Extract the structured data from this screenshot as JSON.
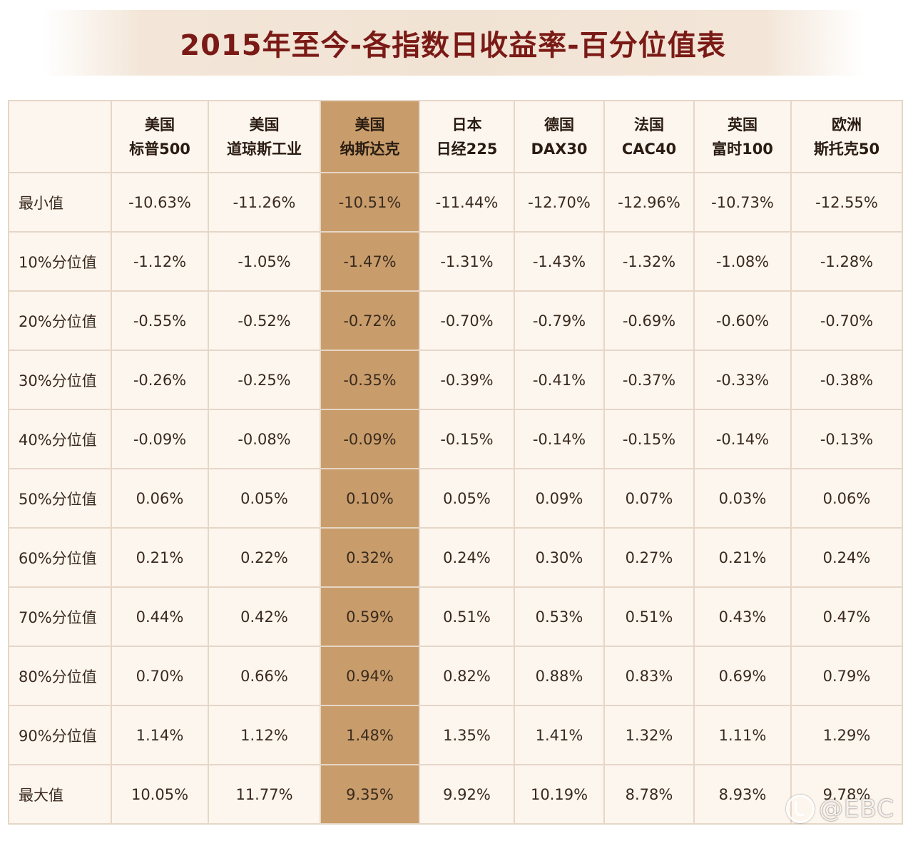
{
  "title": "2015年至今-各指数日收益率-百分位值表",
  "columns": [
    {
      "line1": "美国",
      "line2": "标普500"
    },
    {
      "line1": "美国",
      "line2": "道琼斯工业"
    },
    {
      "line1": "美国",
      "line2": "纳斯达克"
    },
    {
      "line1": "日本",
      "line2": "日经225"
    },
    {
      "line1": "德国",
      "line2": "DAX30"
    },
    {
      "line1": "法国",
      "line2": "CAC40"
    },
    {
      "line1": "英国",
      "line2": "富时100"
    },
    {
      "line1": "欧洲",
      "line2": "斯托克50"
    }
  ],
  "highlight_color": "#c89d6b",
  "rows": [
    {
      "label": "最小值",
      "values": [
        "-10.63%",
        "-11.26%",
        "-10.51%",
        "-11.44%",
        "-12.70%",
        "-12.96%",
        "-10.73%",
        "-12.55%"
      ]
    },
    {
      "label": "10%分位值",
      "values": [
        "-1.12%",
        "-1.05%",
        "-1.47%",
        "-1.31%",
        "-1.43%",
        "-1.32%",
        "-1.08%",
        "-1.28%"
      ]
    },
    {
      "label": "20%分位值",
      "values": [
        "-0.55%",
        "-0.52%",
        "-0.72%",
        "-0.70%",
        "-0.79%",
        "-0.69%",
        "-0.60%",
        "-0.70%"
      ]
    },
    {
      "label": "30%分位值",
      "values": [
        "-0.26%",
        "-0.25%",
        "-0.35%",
        "-0.39%",
        "-0.41%",
        "-0.37%",
        "-0.33%",
        "-0.38%"
      ]
    },
    {
      "label": "40%分位值",
      "values": [
        "-0.09%",
        "-0.08%",
        "-0.09%",
        "-0.15%",
        "-0.14%",
        "-0.15%",
        "-0.14%",
        "-0.13%"
      ]
    },
    {
      "label": "50%分位值",
      "values": [
        "0.06%",
        "0.05%",
        "0.10%",
        "0.05%",
        "0.09%",
        "0.07%",
        "0.03%",
        "0.06%"
      ]
    },
    {
      "label": "60%分位值",
      "values": [
        "0.21%",
        "0.22%",
        "0.32%",
        "0.24%",
        "0.30%",
        "0.27%",
        "0.21%",
        "0.24%"
      ]
    },
    {
      "label": "70%分位值",
      "values": [
        "0.44%",
        "0.42%",
        "0.59%",
        "0.51%",
        "0.53%",
        "0.51%",
        "0.43%",
        "0.47%"
      ]
    },
    {
      "label": "80%分位值",
      "values": [
        "0.70%",
        "0.66%",
        "0.94%",
        "0.82%",
        "0.88%",
        "0.83%",
        "0.69%",
        "0.79%"
      ]
    },
    {
      "label": "90%分位值",
      "values": [
        "1.14%",
        "1.12%",
        "1.48%",
        "1.35%",
        "1.41%",
        "1.32%",
        "1.11%",
        "1.29%"
      ]
    },
    {
      "label": "最大值",
      "values": [
        "10.05%",
        "11.77%",
        "9.35%",
        "9.92%",
        "10.19%",
        "8.78%",
        "8.93%",
        "9.78%"
      ]
    }
  ],
  "watermark": {
    "text": "@EBC",
    "icon": "weibo-icon"
  }
}
